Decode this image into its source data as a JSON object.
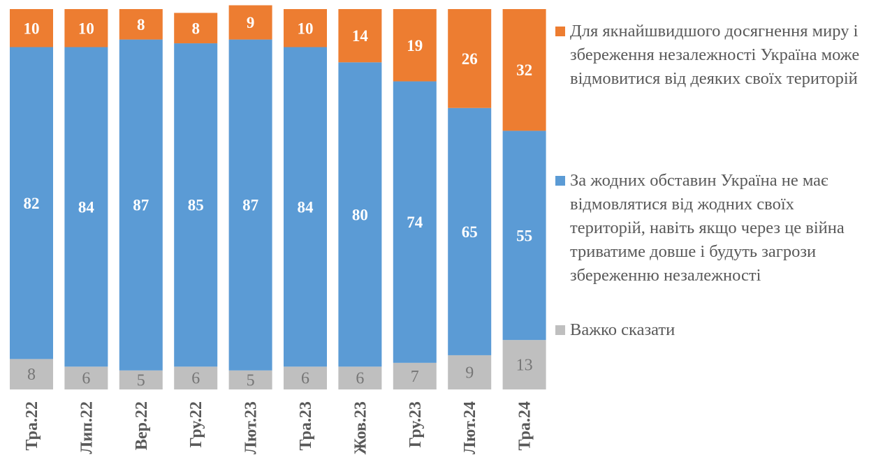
{
  "chart_data": {
    "type": "bar",
    "stacked": true,
    "categories": [
      "Тра.22",
      "Лип.22",
      "Вер.22",
      "Гру.22",
      "Лют.23",
      "Тра.23",
      "Жов.23",
      "Гру.23",
      "Лют.24",
      "Тра.24"
    ],
    "series": [
      {
        "name": "Важко сказати",
        "color": "#BFBFBF",
        "values": [
          8,
          6,
          5,
          6,
          5,
          6,
          6,
          7,
          9,
          13
        ]
      },
      {
        "name": "За жодних обставин Україна не має відмовлятися від жодних своїх територій, навіть якщо через це війна триватиме довше і будуть загрози збереженню незалежності",
        "color": "#5B9BD5",
        "values": [
          82,
          84,
          87,
          85,
          87,
          84,
          80,
          74,
          65,
          55
        ]
      },
      {
        "name": "Для якнайшвидшого досягнення миру і збереження незалежності Україна може відмовитися від деяких своїх територій",
        "color": "#ED7D31",
        "values": [
          10,
          10,
          8,
          8,
          9,
          10,
          14,
          19,
          26,
          32
        ]
      }
    ],
    "ylim": [
      0,
      100
    ],
    "grid": false,
    "data_labels": true,
    "legend_position": "right"
  }
}
